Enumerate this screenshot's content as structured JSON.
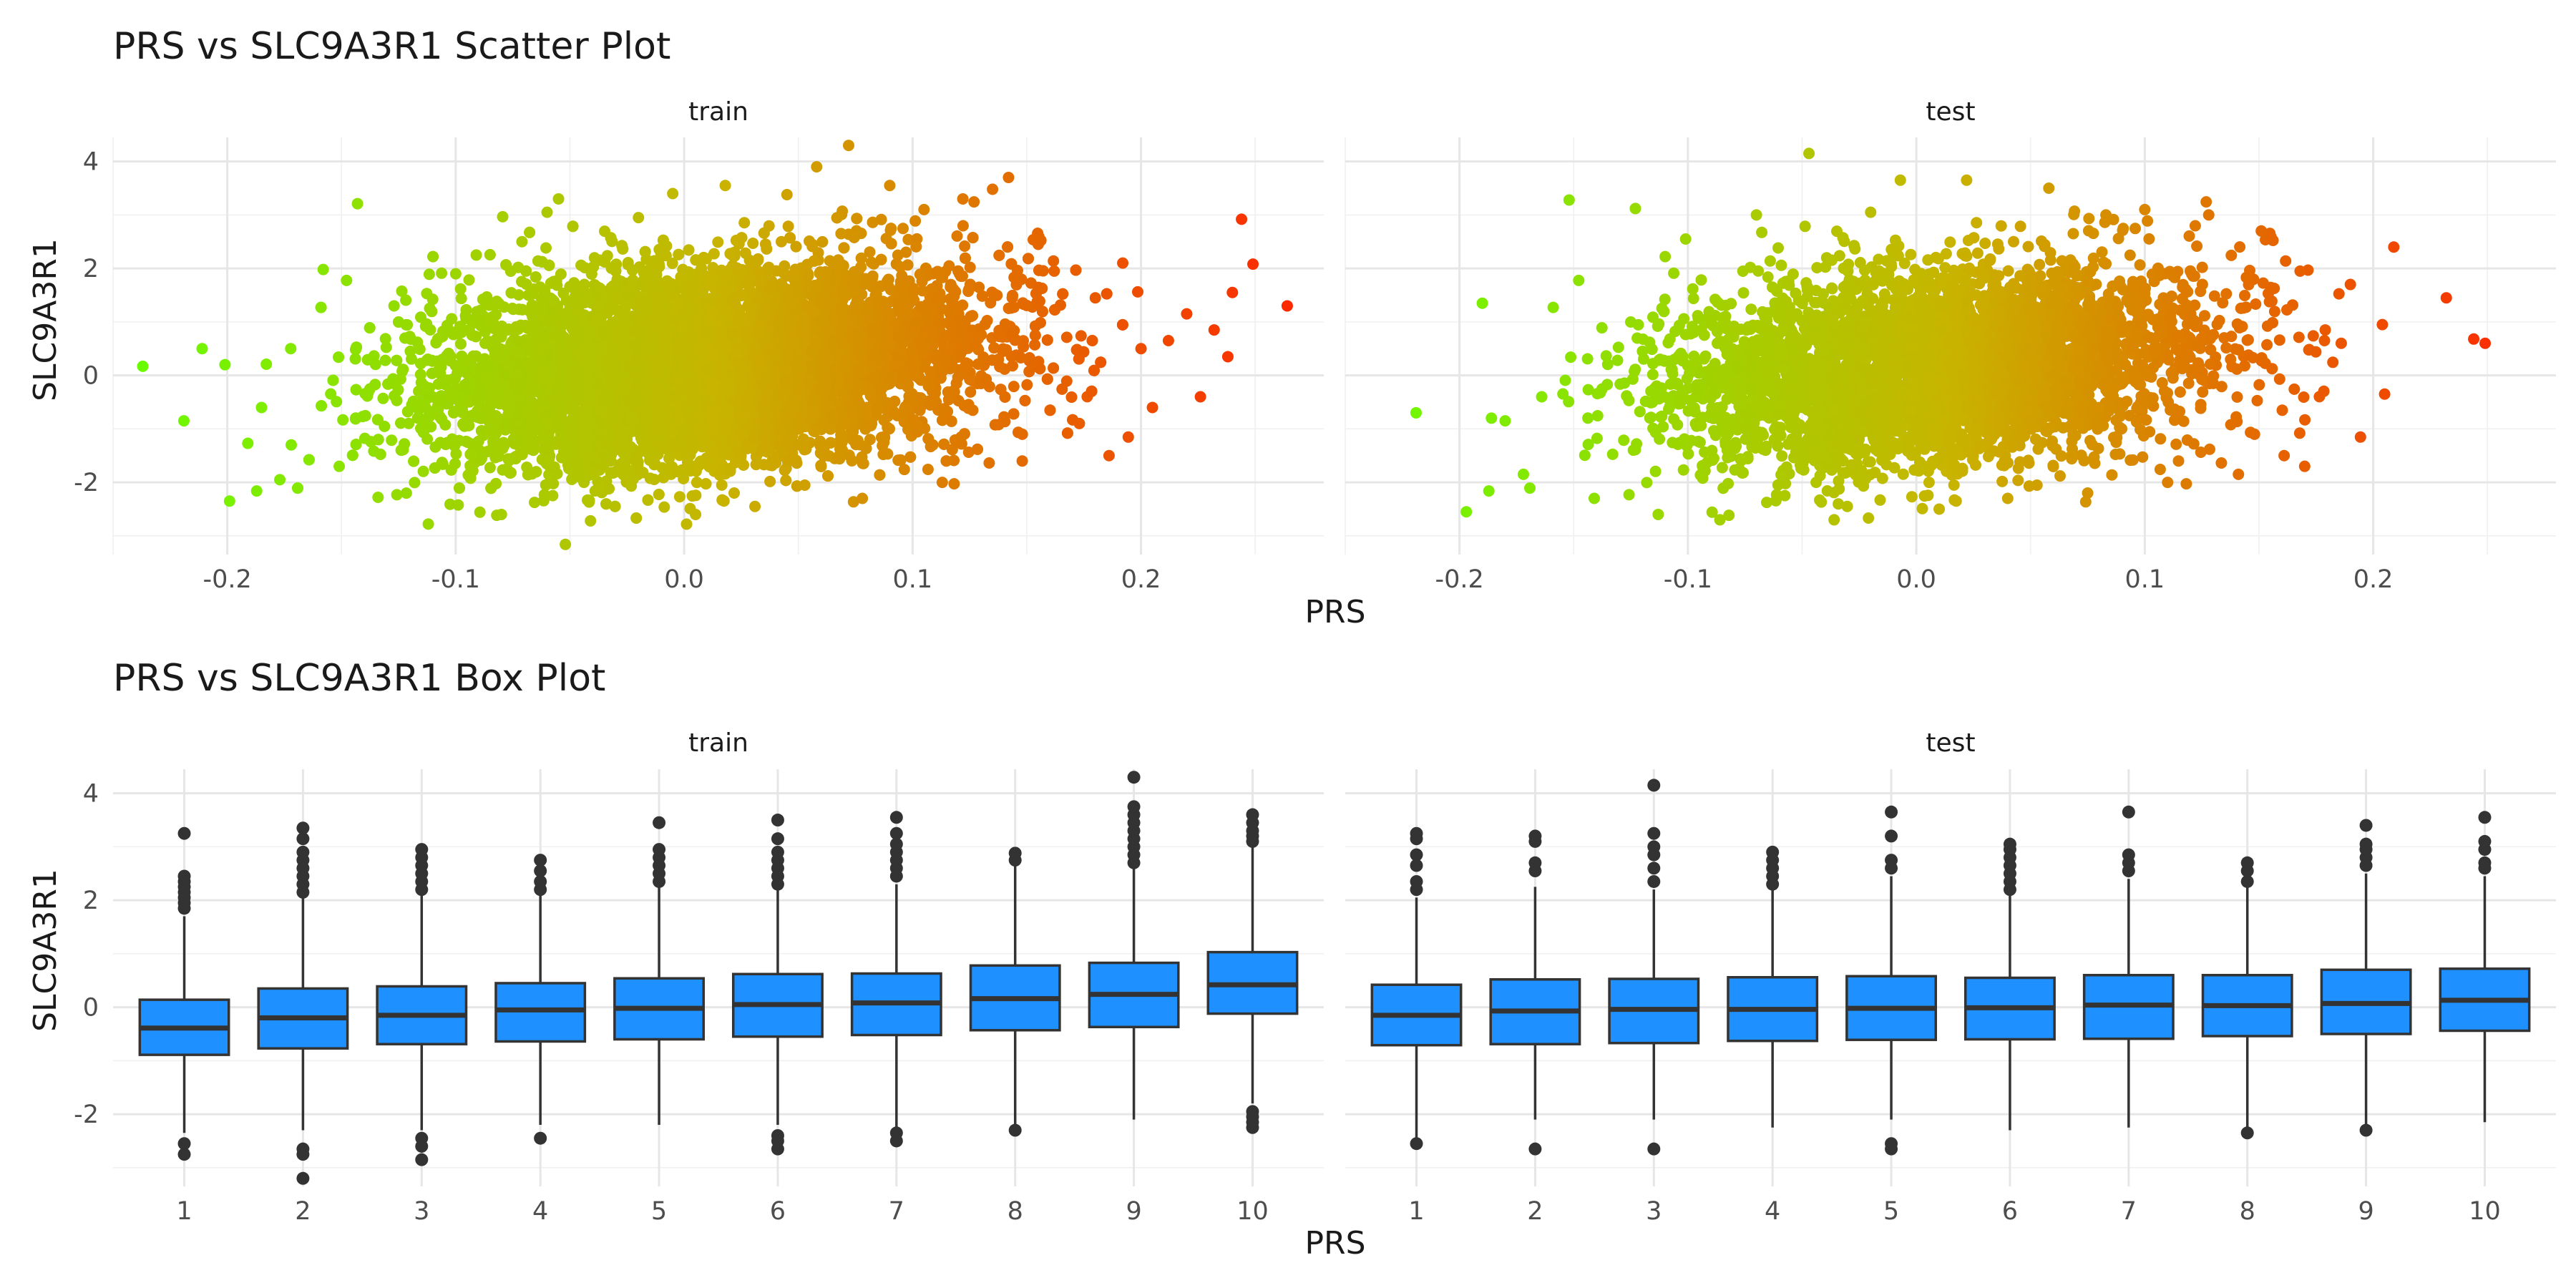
{
  "chart_data": [
    {
      "type": "scatter",
      "title": "PRS vs SLC9A3R1 Scatter Plot",
      "xlabel": "PRS",
      "ylabel": "SLC9A3R1",
      "colors": {
        "low": "#66ff00",
        "mid": "#c8b400",
        "high": "#ff2000"
      },
      "facets": [
        {
          "name": "train",
          "xlim": [
            -0.25,
            0.28
          ],
          "ylim": [
            -3.35,
            4.45
          ],
          "x_ticks": [
            -0.2,
            -0.1,
            0.0,
            0.1,
            0.2
          ],
          "x_tick_labels": [
            "-0.2",
            "-0.1",
            "0.0",
            "0.1",
            "0.2"
          ],
          "y_ticks": [
            -2,
            0,
            2,
            4
          ],
          "y_tick_labels": [
            "-2",
            "0",
            "2",
            "4"
          ],
          "points": [
            [
              -0.237,
              0.17
            ],
            [
              -0.219,
              -0.85
            ],
            [
              -0.211,
              0.5
            ],
            [
              -0.201,
              0.2
            ],
            [
              -0.199,
              -2.35
            ],
            [
              -0.191,
              -1.27
            ],
            [
              -0.185,
              -0.6
            ],
            [
              -0.177,
              -1.95
            ],
            [
              -0.172,
              -1.3
            ],
            [
              -0.158,
              1.98
            ],
            [
              -0.151,
              -1.7
            ],
            [
              -0.143,
              3.21
            ],
            [
              -0.134,
              -2.28
            ],
            [
              -0.127,
              1.3
            ],
            [
              -0.112,
              -2.78
            ],
            [
              -0.1,
              1.9
            ],
            [
              -0.091,
              2.25
            ],
            [
              -0.08,
              -2.6
            ],
            [
              -0.071,
              2.5
            ],
            [
              -0.06,
              3.05
            ],
            [
              -0.055,
              3.3
            ],
            [
              -0.052,
              -3.16
            ],
            [
              -0.041,
              -2.72
            ],
            [
              -0.02,
              2.95
            ],
            [
              -0.005,
              3.4
            ],
            [
              0.005,
              -2.6
            ],
            [
              0.018,
              3.55
            ],
            [
              0.031,
              -2.45
            ],
            [
              0.045,
              3.38
            ],
            [
              0.058,
              3.9
            ],
            [
              0.072,
              4.3
            ],
            [
              0.078,
              -2.3
            ],
            [
              0.09,
              3.55
            ],
            [
              0.105,
              3.1
            ],
            [
              0.113,
              -2.0
            ],
            [
              0.122,
              3.3
            ],
            [
              0.135,
              3.48
            ],
            [
              0.142,
              3.7
            ],
            [
              0.148,
              -1.6
            ],
            [
              0.155,
              2.45
            ],
            [
              0.162,
              1.95
            ],
            [
              0.173,
              -0.9
            ],
            [
              0.18,
              1.45
            ],
            [
              0.186,
              -1.5
            ],
            [
              0.192,
              2.1
            ],
            [
              0.2,
              0.5
            ],
            [
              0.205,
              -0.6
            ],
            [
              0.212,
              0.65
            ],
            [
              0.22,
              1.15
            ],
            [
              0.226,
              -0.4
            ],
            [
              0.232,
              0.85
            ],
            [
              0.238,
              0.35
            ],
            [
              0.24,
              1.55
            ],
            [
              0.244,
              2.92
            ],
            [
              0.249,
              2.08
            ],
            [
              0.264,
              1.3
            ]
          ]
        },
        {
          "name": "test",
          "xlim": [
            -0.25,
            0.28
          ],
          "ylim": [
            -3.35,
            4.45
          ],
          "x_ticks": [
            -0.2,
            -0.1,
            0.0,
            0.1,
            0.2
          ],
          "x_tick_labels": [
            "-0.2",
            "-0.1",
            "0.0",
            "0.1",
            "0.2"
          ],
          "y_ticks": [
            -2,
            0,
            2,
            4
          ],
          "y_tick_labels": [
            "-2",
            "0",
            "2",
            "4"
          ],
          "points": [
            [
              -0.219,
              -0.7
            ],
            [
              -0.197,
              -2.55
            ],
            [
              -0.19,
              1.35
            ],
            [
              -0.186,
              -0.8
            ],
            [
              -0.18,
              -0.85
            ],
            [
              -0.172,
              -1.85
            ],
            [
              -0.164,
              -0.4
            ],
            [
              -0.152,
              3.28
            ],
            [
              -0.141,
              -2.3
            ],
            [
              -0.123,
              3.12
            ],
            [
              -0.113,
              -2.6
            ],
            [
              -0.101,
              2.55
            ],
            [
              -0.086,
              -2.7
            ],
            [
              -0.07,
              3.0
            ],
            [
              -0.047,
              4.15
            ],
            [
              -0.036,
              -2.7
            ],
            [
              -0.02,
              3.05
            ],
            [
              -0.007,
              3.65
            ],
            [
              0.01,
              -2.5
            ],
            [
              0.022,
              3.65
            ],
            [
              0.04,
              -2.3
            ],
            [
              0.058,
              3.5
            ],
            [
              0.075,
              -2.2
            ],
            [
              0.083,
              3.0
            ],
            [
              0.1,
              3.1
            ],
            [
              0.11,
              -2.0
            ],
            [
              0.128,
              3.0
            ],
            [
              0.141,
              -1.85
            ],
            [
              0.151,
              2.7
            ],
            [
              0.161,
              -1.5
            ],
            [
              0.168,
              1.95
            ],
            [
              0.17,
              -1.7
            ],
            [
              0.179,
              0.85
            ],
            [
              0.186,
              0.6
            ],
            [
              0.19,
              1.7
            ],
            [
              0.204,
              0.95
            ],
            [
              0.205,
              -0.35
            ],
            [
              0.209,
              2.4
            ],
            [
              0.232,
              1.45
            ],
            [
              0.244,
              0.68
            ],
            [
              0.249,
              0.6
            ]
          ]
        }
      ]
    },
    {
      "type": "box",
      "title": "PRS vs SLC9A3R1 Box Plot",
      "xlabel": "PRS",
      "ylabel": "SLC9A3R1",
      "colors": {
        "fill": "#1e90ff",
        "stroke": "#333333"
      },
      "categories": [
        "1",
        "2",
        "3",
        "4",
        "5",
        "6",
        "7",
        "8",
        "9",
        "10"
      ],
      "ylim": [
        -3.35,
        4.45
      ],
      "y_ticks": [
        -2,
        0,
        2,
        4
      ],
      "y_tick_labels": [
        "-2",
        "0",
        "2",
        "4"
      ],
      "facets": [
        {
          "name": "train",
          "boxes": [
            {
              "q1": -0.89,
              "median": -0.39,
              "q3": 0.14,
              "low": -2.35,
              "high": 1.7,
              "outliers": [
                1.85,
                1.95,
                2.05,
                2.15,
                2.25,
                2.35,
                2.45,
                3.25,
                -2.55,
                -2.75
              ]
            },
            {
              "q1": -0.77,
              "median": -0.2,
              "q3": 0.35,
              "low": -2.3,
              "high": 2.05,
              "outliers": [
                2.15,
                2.3,
                2.45,
                2.6,
                2.75,
                2.9,
                3.15,
                3.35,
                -2.65,
                -2.75,
                -3.2
              ]
            },
            {
              "q1": -0.69,
              "median": -0.15,
              "q3": 0.39,
              "low": -2.3,
              "high": 2.1,
              "outliers": [
                2.2,
                2.35,
                2.5,
                2.65,
                2.8,
                2.95,
                -2.45,
                -2.6,
                -2.85
              ]
            },
            {
              "q1": -0.64,
              "median": -0.05,
              "q3": 0.45,
              "low": -2.2,
              "high": 2.1,
              "outliers": [
                2.2,
                2.35,
                2.55,
                2.75,
                -2.45
              ]
            },
            {
              "q1": -0.6,
              "median": -0.02,
              "q3": 0.54,
              "low": -2.2,
              "high": 2.25,
              "outliers": [
                2.35,
                2.5,
                2.65,
                2.8,
                2.95,
                3.45
              ]
            },
            {
              "q1": -0.55,
              "median": 0.05,
              "q3": 0.62,
              "low": -2.2,
              "high": 2.2,
              "outliers": [
                2.3,
                2.45,
                2.6,
                2.75,
                2.9,
                3.15,
                3.5,
                -2.4,
                -2.5,
                -2.65
              ]
            },
            {
              "q1": -0.52,
              "median": 0.08,
              "q3": 0.63,
              "low": -2.25,
              "high": 2.3,
              "outliers": [
                2.45,
                2.6,
                2.75,
                2.9,
                3.05,
                3.25,
                3.55,
                -2.35,
                -2.5
              ]
            },
            {
              "q1": -0.43,
              "median": 0.16,
              "q3": 0.78,
              "low": -2.2,
              "high": 2.65,
              "outliers": [
                2.75,
                2.88,
                -2.3
              ]
            },
            {
              "q1": -0.37,
              "median": 0.24,
              "q3": 0.83,
              "low": -2.1,
              "high": 2.6,
              "outliers": [
                2.7,
                2.85,
                3.0,
                3.15,
                3.3,
                3.45,
                3.6,
                3.75,
                4.3
              ]
            },
            {
              "q1": -0.12,
              "median": 0.42,
              "q3": 1.03,
              "low": -1.8,
              "high": 3.0,
              "outliers": [
                3.1,
                3.2,
                3.3,
                3.45,
                3.6,
                -1.95,
                -2.05,
                -2.15,
                -2.25
              ]
            }
          ]
        },
        {
          "name": "test",
          "boxes": [
            {
              "q1": -0.71,
              "median": -0.15,
              "q3": 0.42,
              "low": -2.45,
              "high": 2.05,
              "outliers": [
                2.2,
                2.35,
                2.65,
                2.85,
                3.15,
                3.25,
                -2.55
              ]
            },
            {
              "q1": -0.69,
              "median": -0.07,
              "q3": 0.52,
              "low": -2.1,
              "high": 2.25,
              "outliers": [
                2.55,
                2.7,
                3.1,
                3.2,
                -2.65
              ]
            },
            {
              "q1": -0.67,
              "median": -0.04,
              "q3": 0.53,
              "low": -2.1,
              "high": 2.2,
              "outliers": [
                2.35,
                2.6,
                2.85,
                3.0,
                3.25,
                4.15,
                -2.65
              ]
            },
            {
              "q1": -0.63,
              "median": -0.04,
              "q3": 0.56,
              "low": -2.25,
              "high": 2.2,
              "outliers": [
                2.3,
                2.45,
                2.6,
                2.75,
                2.9
              ]
            },
            {
              "q1": -0.61,
              "median": -0.02,
              "q3": 0.58,
              "low": -2.1,
              "high": 2.45,
              "outliers": [
                2.6,
                2.75,
                3.2,
                3.65,
                -2.55,
                -2.65
              ]
            },
            {
              "q1": -0.6,
              "median": -0.01,
              "q3": 0.55,
              "low": -2.3,
              "high": 2.1,
              "outliers": [
                2.2,
                2.35,
                2.5,
                2.65,
                2.8,
                2.95,
                3.05
              ]
            },
            {
              "q1": -0.59,
              "median": 0.04,
              "q3": 0.6,
              "low": -2.25,
              "high": 2.4,
              "outliers": [
                2.55,
                2.7,
                2.85,
                3.65
              ]
            },
            {
              "q1": -0.54,
              "median": 0.03,
              "q3": 0.6,
              "low": -2.25,
              "high": 2.25,
              "outliers": [
                2.35,
                2.55,
                2.7,
                -2.35
              ]
            },
            {
              "q1": -0.5,
              "median": 0.07,
              "q3": 0.7,
              "low": -2.2,
              "high": 2.5,
              "outliers": [
                2.65,
                2.8,
                2.95,
                3.05,
                3.4,
                -2.3
              ]
            },
            {
              "q1": -0.44,
              "median": 0.13,
              "q3": 0.72,
              "low": -2.15,
              "high": 2.45,
              "outliers": [
                2.6,
                2.7,
                2.95,
                3.1,
                3.55
              ]
            }
          ]
        }
      ]
    }
  ]
}
